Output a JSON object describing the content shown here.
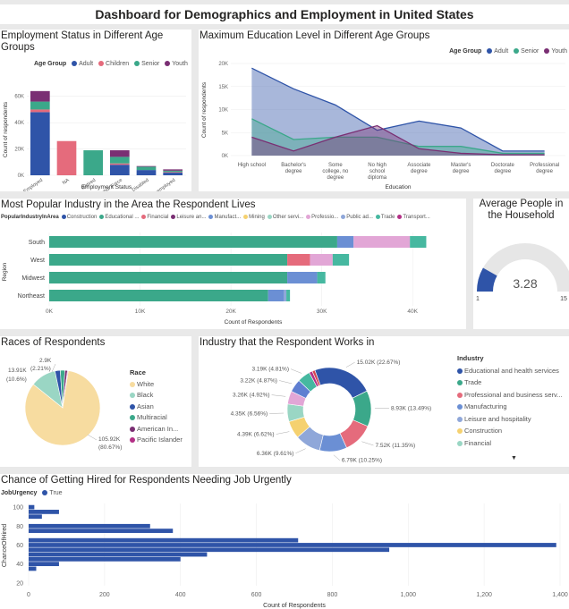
{
  "title": "Dashboard for Demographics and Employment in United States",
  "chart_data": [
    {
      "id": "employment",
      "type": "bar",
      "stacked": true,
      "title": "Employment Status in Different Age Groups",
      "legend_title": "Age Group",
      "xlabel": "Employment Status",
      "ylabel": "Count of respondents",
      "categories": [
        "Employed",
        "NA",
        "Retired",
        "Not in Labor Force",
        "Disabled",
        "Unemployed"
      ],
      "series": [
        {
          "name": "Adult",
          "color": "#2f54a8",
          "values": [
            48000,
            0,
            0,
            8000,
            4000,
            2000
          ]
        },
        {
          "name": "Children",
          "color": "#e56b7c",
          "values": [
            2000,
            26000,
            0,
            1000,
            0,
            500
          ]
        },
        {
          "name": "Senior",
          "color": "#3ba88a",
          "values": [
            6000,
            0,
            19000,
            5000,
            2500,
            1000
          ]
        },
        {
          "name": "Youth",
          "color": "#7a2f73",
          "values": [
            8000,
            0,
            0,
            5000,
            500,
            1000
          ]
        }
      ],
      "yticks": [
        "0K",
        "20K",
        "40K",
        "60K"
      ],
      "ylim": [
        0,
        70000
      ]
    },
    {
      "id": "education",
      "type": "area",
      "title": "Maximum Education Level in Different Age Groups",
      "legend_title": "Age Group",
      "xlabel": "Education",
      "ylabel": "Count of respondents",
      "categories": [
        "High school",
        "Bachelor's degree",
        "Some college, no degree",
        "No high school diploma",
        "Associate degree",
        "Master's degree",
        "Doctorate degree",
        "Professional degree"
      ],
      "series": [
        {
          "name": "Adult",
          "color": "#2f54a8",
          "values": [
            19000,
            14500,
            11000,
            5500,
            7500,
            6000,
            1000,
            1000
          ]
        },
        {
          "name": "Senior",
          "color": "#3ba88a",
          "values": [
            8000,
            3500,
            4000,
            4000,
            2000,
            2000,
            500,
            500
          ]
        },
        {
          "name": "Youth",
          "color": "#7a2f73",
          "values": [
            4000,
            1000,
            4000,
            6500,
            1500,
            500,
            200,
            200
          ]
        }
      ],
      "yticks": [
        "0K",
        "5K",
        "10K",
        "15K",
        "20K"
      ],
      "ylim": [
        0,
        20000
      ]
    },
    {
      "id": "industry_area",
      "type": "bar",
      "orientation": "horizontal",
      "stacked": true,
      "title": "Most Popular Industry in the Area the Respondent Lives",
      "legend_title": "PopularIndustryInArea",
      "xlabel": "Count of Respondents",
      "ylabel": "Region",
      "categories": [
        "South",
        "West",
        "Midwest",
        "Northeast"
      ],
      "series": [
        {
          "name": "Construction",
          "color": "#2f54a8",
          "values": [
            0,
            0,
            0,
            0
          ]
        },
        {
          "name": "Educational ...",
          "color": "#3ba88a",
          "values": [
            31700,
            26200,
            26200,
            24100
          ]
        },
        {
          "name": "Financial",
          "color": "#e56b7c",
          "values": [
            0,
            2500,
            0,
            0
          ]
        },
        {
          "name": "Leisure an...",
          "color": "#7a2f73",
          "values": [
            0,
            0,
            0,
            0
          ]
        },
        {
          "name": "Manufact...",
          "color": "#6b8fd4",
          "values": [
            1800,
            0,
            3300,
            1700
          ]
        },
        {
          "name": "Mining",
          "color": "#f5d170",
          "values": [
            0,
            0,
            0,
            0
          ]
        },
        {
          "name": "Other servi...",
          "color": "#9ad6c4",
          "values": [
            0,
            0,
            0,
            0
          ]
        },
        {
          "name": "Professio...",
          "color": "#e2a6d6",
          "values": [
            6200,
            2500,
            0,
            0
          ]
        },
        {
          "name": "Public ad...",
          "color": "#8fa7d9",
          "values": [
            0,
            0,
            0,
            300
          ]
        },
        {
          "name": "Trade",
          "color": "#46b8a0",
          "values": [
            1800,
            1800,
            900,
            400
          ]
        },
        {
          "name": "Transport...",
          "color": "#b32f86",
          "values": [
            0,
            0,
            0,
            0
          ]
        }
      ],
      "xticks": [
        "0K",
        "10K",
        "20K",
        "30K",
        "40K"
      ],
      "xlim": [
        0,
        45000
      ]
    },
    {
      "id": "household",
      "type": "gauge",
      "title": "Average People in the Household",
      "value": 3.28,
      "value_label": "3.28",
      "min": 1,
      "max": 15,
      "min_label": "1",
      "max_label": "15"
    },
    {
      "id": "races",
      "type": "pie",
      "title": "Races of Respondents",
      "legend_title": "Race",
      "slices": [
        {
          "name": "White",
          "value": 105920,
          "color": "#f7dca0",
          "label": "105.92K (80.67%)"
        },
        {
          "name": "Black",
          "value": 13910,
          "color": "#9ad6c4",
          "label": "13.91K (10.6%)"
        },
        {
          "name": "Asian",
          "value": 2900,
          "color": "#2f54a8",
          "label": "2.9K (2.21%)"
        },
        {
          "name": "Multiracial",
          "value": 2500,
          "color": "#3ba88a",
          "label": ""
        },
        {
          "name": "American In...",
          "value": 1400,
          "color": "#7a2f73",
          "label": ""
        },
        {
          "name": "Pacific Islander",
          "value": 400,
          "color": "#b32f86",
          "label": ""
        }
      ]
    },
    {
      "id": "industry_work",
      "type": "pie",
      "donut": true,
      "title": "Industry that the Respondent Works in",
      "legend_title": "Industry",
      "slices": [
        {
          "name": "Educational and health services",
          "value": 15020,
          "color": "#2f54a8",
          "label": "15.02K (22.67%)"
        },
        {
          "name": "Trade",
          "value": 8930,
          "color": "#3ba88a",
          "label": "8.93K (13.49%)"
        },
        {
          "name": "Professional and business serv...",
          "value": 7520,
          "color": "#e56b7c",
          "label": "7.52K (11.35%)"
        },
        {
          "name": "Manufacturing",
          "value": 6790,
          "color": "#6b8fd4",
          "label": "6.79K (10.25%)"
        },
        {
          "name": "Leisure and hospitality",
          "value": 6360,
          "color": "#8fa7d9",
          "label": "6.36K (9.61%)"
        },
        {
          "name": "Construction",
          "value": 4390,
          "color": "#f5d170",
          "label": "4.39K (6.62%)"
        },
        {
          "name": "Financial",
          "value": 4350,
          "color": "#9ad6c4",
          "label": "4.35K (6.56%)"
        },
        {
          "name": "Other",
          "value": 3260,
          "color": "#e2a6d6",
          "label": "3.26K (4.92%)"
        },
        {
          "name": "Public",
          "value": 3220,
          "color": "#5f7fd1",
          "label": "3.22K (4.87%)"
        },
        {
          "name": "Transport",
          "value": 3190,
          "color": "#46b8a0",
          "label": "3.19K (4.81%)"
        },
        {
          "name": "Mining",
          "value": 800,
          "color": "#b32f86",
          "label": ""
        },
        {
          "name": "Agriculture",
          "value": 700,
          "color": "#d64550",
          "label": ""
        }
      ],
      "legend_visible": [
        "Educational and health services",
        "Trade",
        "Professional and business serv...",
        "Manufacturing",
        "Leisure and hospitality",
        "Construction",
        "Financial"
      ]
    },
    {
      "id": "hired",
      "type": "bar",
      "orientation": "horizontal",
      "title": "Chance of Getting Hired for Respondents Needing Job Urgently",
      "legend_title": "JobUrgency",
      "legend_entry": "True",
      "xlabel": "Count of Respondents",
      "ylabel": "ChanceOfHired",
      "series": [
        {
          "name": "True",
          "color": "#2f54a8"
        }
      ],
      "y": [
        100,
        95,
        90,
        85,
        80,
        75,
        70,
        65,
        60,
        55,
        50,
        45,
        40,
        35,
        30,
        25,
        20
      ],
      "values": [
        15,
        80,
        35,
        0,
        320,
        380,
        0,
        710,
        1390,
        950,
        470,
        400,
        80,
        20,
        0,
        0,
        0
      ],
      "yticks": [
        20,
        40,
        60,
        80,
        100
      ],
      "xticks": [
        "0",
        "200",
        "400",
        "600",
        "800",
        "1,000",
        "1,200",
        "1,400"
      ],
      "xlim": [
        0,
        1400
      ]
    }
  ]
}
